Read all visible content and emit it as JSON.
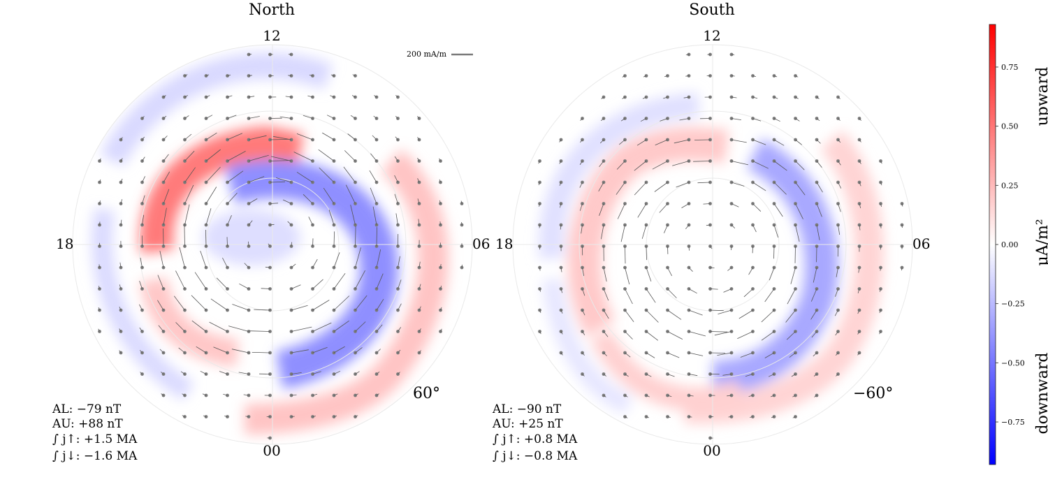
{
  "chart_data": {
    "type": "heatmap",
    "description_kind": "polar dial plots of field-aligned current density with horizontal current vectors",
    "panels": [
      {
        "title": "North",
        "mlt_labels": {
          "top": "12",
          "bottom": "00",
          "left": "18",
          "right": "06"
        },
        "latitude_label": "60°",
        "min_latitude_deg": 50,
        "stats": [
          "AL: −79 nT",
          "AU: +88 nT",
          "∫ j↑: +1.5 MA",
          "∫ j↓: −1.6 MA"
        ],
        "scale_vector_label": "200 mA/m",
        "peak_upward_uA_m2": 0.65,
        "peak_downward_uA_m2": -0.45
      },
      {
        "title": "South",
        "mlt_labels": {
          "top": "12",
          "bottom": "00",
          "left": "18",
          "right": "06"
        },
        "latitude_label": "−60°",
        "min_latitude_deg": -50,
        "stats": [
          "AL: −90 nT",
          "AU: +25 nT",
          "∫ j↑: +0.8 MA",
          "∫ j↓: −0.8 MA"
        ],
        "peak_upward_uA_m2": 0.2,
        "peak_downward_uA_m2": -0.35
      }
    ],
    "colorbar": {
      "label": "μA/m²",
      "range": [
        -0.93,
        0.93
      ],
      "ticks": [
        -0.75,
        -0.5,
        -0.25,
        0.0,
        0.25,
        0.5,
        0.75
      ],
      "tick_labels": [
        "−0.75",
        "−0.50",
        "−0.25",
        "0.00",
        "0.25",
        "0.50",
        "0.75"
      ],
      "upper_label": "upward",
      "lower_label": "downward",
      "colormap": "bwr"
    },
    "colors": {
      "upward": "#ff0000",
      "downward": "#0000ff",
      "vectors": "#7a7a7a",
      "grid": "#e6e6e6"
    }
  }
}
